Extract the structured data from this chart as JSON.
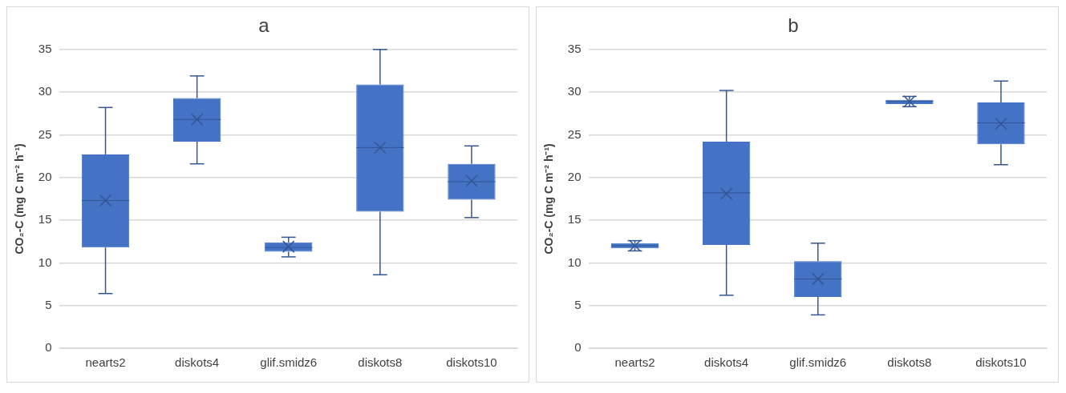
{
  "chart_data": [
    {
      "type": "box",
      "title": "a",
      "ylabel": "CO₂-C (mg C m⁻² h⁻¹)",
      "categories": [
        "nearts2",
        "diskots4",
        "glif.smidz6",
        "diskots8",
        "diskots10"
      ],
      "color": "#4472c4",
      "ylim": [
        0,
        35
      ],
      "yticks": [
        0,
        5,
        10,
        15,
        20,
        25,
        30,
        35
      ],
      "grid": "y",
      "legend": false,
      "boxes": [
        {
          "low": 6.4,
          "q1": 11.8,
          "median": 17.3,
          "q3": 22.7,
          "high": 28.2,
          "mean": 17.3
        },
        {
          "low": 21.6,
          "q1": 24.2,
          "median": 26.8,
          "q3": 29.3,
          "high": 31.9,
          "mean": 26.8
        },
        {
          "low": 10.7,
          "q1": 11.3,
          "median": 11.8,
          "q3": 12.4,
          "high": 13.0,
          "mean": 11.9
        },
        {
          "low": 8.6,
          "q1": 16.0,
          "median": 23.5,
          "q3": 30.9,
          "high": 35,
          "mean": 23.5
        },
        {
          "low": 15.3,
          "q1": 17.4,
          "median": 19.5,
          "q3": 21.6,
          "high": 23.7,
          "mean": 19.6
        }
      ]
    },
    {
      "type": "box",
      "title": "b",
      "ylabel": "CO₂-C (mg C m⁻² h⁻¹)",
      "categories": [
        "nearts2",
        "diskots4",
        "glif.smidz6",
        "diskots8",
        "diskots10"
      ],
      "color": "#4472c4",
      "ylim": [
        0,
        35
      ],
      "yticks": [
        0,
        5,
        10,
        15,
        20,
        25,
        30,
        35
      ],
      "grid": "y",
      "legend": false,
      "boxes": [
        {
          "low": 11.4,
          "q1": 11.7,
          "median": 12.0,
          "q3": 12.3,
          "high": 12.6,
          "mean": 12.0
        },
        {
          "low": 6.2,
          "q1": 12.1,
          "median": 18.2,
          "q3": 24.2,
          "high": 30.2,
          "mean": 18.1
        },
        {
          "low": 3.9,
          "q1": 6.0,
          "median": 8.1,
          "q3": 10.2,
          "high": 12.3,
          "mean": 8.1
        },
        {
          "low": 28.3,
          "q1": 28.6,
          "median": 28.9,
          "q3": 29.1,
          "high": 29.5,
          "mean": 28.9
        },
        {
          "low": 21.5,
          "q1": 23.9,
          "median": 26.4,
          "q3": 28.8,
          "high": 31.3,
          "mean": 26.3
        }
      ]
    }
  ]
}
